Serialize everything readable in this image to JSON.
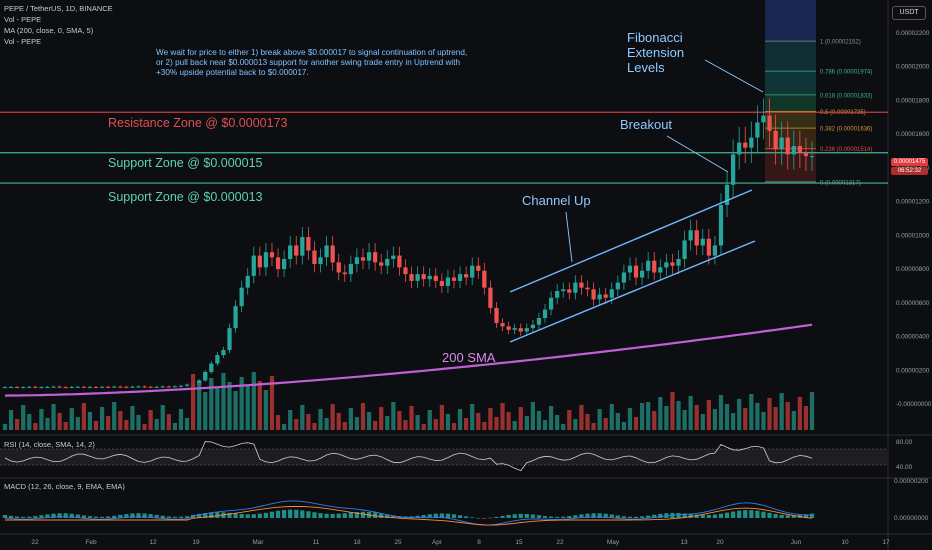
{
  "header": {
    "title": "PEPE / TetherUS, 1D, BINANCE",
    "legend": [
      "Vol - PEPE",
      "MA (200, close, 0, SMA, 5)",
      "Vol - PEPE"
    ]
  },
  "currency_button": "USDT",
  "note": "We wait for price to either 1) break above $0.000017 to signal continuation of uptrend, or 2) pull back near $0.000013 support for another swing trade entry in Uptrend with +30% upside potential back to $0.000017.",
  "annotations": {
    "fib_title": "Fibonacci\nExtension\nLevels",
    "breakout": "Breakout",
    "channel_up": "Channel Up",
    "sma_label": "200 SMA"
  },
  "zones": {
    "resistance": "Resistance Zone @ $0.0000173",
    "support1": "Support Zone @ $0.000015",
    "support2": "Support Zone @ $0.000013"
  },
  "fib_levels": [
    {
      "ratio": "1",
      "label": "1 (0.00002152)",
      "value": 2.152e-05
    },
    {
      "ratio": "0.786",
      "label": "0.786 (0.00001974)",
      "value": 1.974e-05
    },
    {
      "ratio": "0.618",
      "label": "0.618 (0.00001833)",
      "value": 1.833e-05
    },
    {
      "ratio": "0.5",
      "label": "0.5 (0.00001735)",
      "value": 1.735e-05
    },
    {
      "ratio": "0.382",
      "label": "0.382 (0.00001636)",
      "value": 1.636e-05
    },
    {
      "ratio": "0.236",
      "label": "0.236 (0.00001514)",
      "value": 1.514e-05
    },
    {
      "ratio": "0",
      "label": "0 (0.00001317)",
      "value": 1.317e-05
    }
  ],
  "price_badge": {
    "value": "0.00001475",
    "timer": "06:52:32"
  },
  "rsi": {
    "label": "RSI (14, close, SMA, 14, 2)",
    "ticks": [
      "80.00",
      "40.00"
    ]
  },
  "macd": {
    "label": "MACD (12, 26, close, 9, EMA, EMA)",
    "ticks": [
      "0.00000200",
      "0.00000000"
    ]
  },
  "chart_data": {
    "type": "candlestick",
    "title": "PEPE / TetherUS, 1D, BINANCE",
    "y_ticks": [
      "0.00002200",
      "0.00002000",
      "0.00001800",
      "0.00001600",
      "0.00001400",
      "0.00001200",
      "0.00001000",
      "0.00000800",
      "0.00000600",
      "0.00000400",
      "0.00000200",
      "-0.00000000"
    ],
    "x_ticks": [
      "22",
      "Feb",
      "12",
      "19",
      "Mar",
      "11",
      "18",
      "25",
      "Apr",
      "8",
      "15",
      "22",
      "May",
      "13",
      "20",
      "Jun",
      "10",
      "17"
    ],
    "closes": [
      1e-06,
      1.01e-06,
      9.9e-07,
      1e-06,
      1.02e-06,
      1e-06,
      1e-06,
      1.01e-06,
      1.03e-06,
      1e-06,
      9.9e-07,
      1.01e-06,
      1.02e-06,
      1e-06,
      1.01e-06,
      1e-06,
      1.02e-06,
      1.01e-06,
      1.03e-06,
      1.02e-06,
      1e-06,
      1.03e-06,
      1.04e-06,
      1.02e-06,
      1.01e-06,
      1.02e-06,
      1.04e-06,
      1.03e-06,
      1.05e-06,
      1.08e-06,
      1.15e-06,
      1.12e-06,
      1.4e-06,
      1.9e-06,
      2.4e-06,
      2.9e-06,
      3.2e-06,
      4.5e-06,
      5.8e-06,
      6.9e-06,
      7.6e-06,
      8.8e-06,
      8.1e-06,
      9e-06,
      8.7e-06,
      8e-06,
      8.6e-06,
      9.4e-06,
      8.8e-06,
      9.9e-06,
      9.1e-06,
      8.3e-06,
      8.7e-06,
      9.4e-06,
      8.4e-06,
      7.8e-06,
      7.7e-06,
      8.3e-06,
      8.7e-06,
      8.5e-06,
      9e-06,
      8.4e-06,
      8.2e-06,
      8.6e-06,
      8.8e-06,
      8.1e-06,
      7.7e-06,
      7.3e-06,
      7.7e-06,
      7.4e-06,
      7.6e-06,
      7.3e-06,
      7e-06,
      7.5e-06,
      7.3e-06,
      7.7e-06,
      7.5e-06,
      8.2e-06,
      7.9e-06,
      6.9e-06,
      5.7e-06,
      4.8e-06,
      4.6e-06,
      4.4e-06,
      4.5e-06,
      4.3e-06,
      4.5e-06,
      4.7e-06,
      5.1e-06,
      5.6e-06,
      6.3e-06,
      6.7e-06,
      6.8e-06,
      6.6e-06,
      7.2e-06,
      6.9e-06,
      6.8e-06,
      6.2e-06,
      6.5e-06,
      6.3e-06,
      6.8e-06,
      7.2e-06,
      7.8e-06,
      8.2e-06,
      7.5e-06,
      7.9e-06,
      8.5e-06,
      7.8e-06,
      8.1e-06,
      8.4e-06,
      8.2e-06,
      8.6e-06,
      9.7e-06,
      1.03e-05,
      9.4e-06,
      9.8e-06,
      8.8e-06,
      9.4e-06,
      1.18e-05,
      1.3e-05,
      1.48e-05,
      1.55e-05,
      1.52e-05,
      1.58e-05,
      1.67e-05,
      1.71e-05,
      1.62e-05,
      1.51e-05,
      1.58e-05,
      1.48e-05,
      1.53e-05,
      1.49e-05,
      1.47e-05,
      1.47e-05
    ],
    "sma200_start": 5e-07,
    "sma200_end": 4.7e-06,
    "series": [
      {
        "name": "200 SMA"
      }
    ]
  }
}
